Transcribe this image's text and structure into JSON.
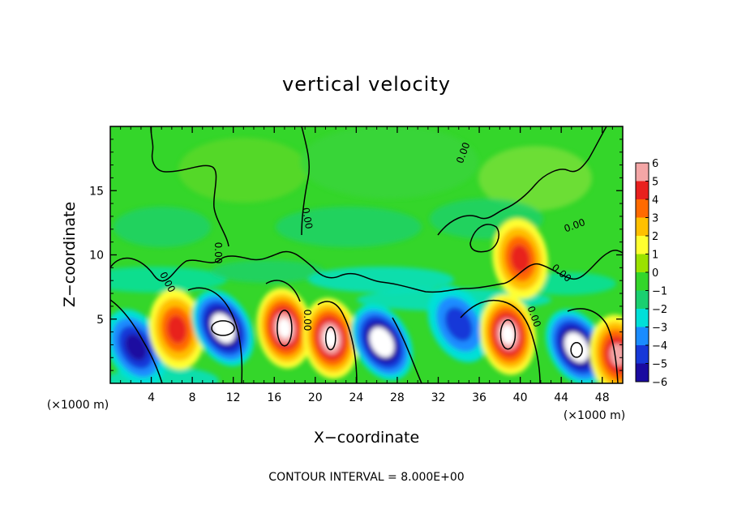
{
  "chart_data": {
    "type": "heatmap",
    "title": "vertical velocity",
    "xlabel": "X−coordinate",
    "ylabel": "Z−coordinate",
    "x_unit_left": "(×1000 m)",
    "x_unit_right": "(×1000 m)",
    "footer": "CONTOUR INTERVAL = 8.000E+00",
    "xlim": [
      0,
      50
    ],
    "ylim": [
      0,
      20
    ],
    "x_ticks": [
      4,
      8,
      12,
      16,
      20,
      24,
      28,
      32,
      36,
      40,
      44,
      48
    ],
    "y_ticks": [
      5,
      10,
      15
    ],
    "colorbar": {
      "ticks": [
        "6",
        "5",
        "4",
        "3",
        "2",
        "1",
        "0",
        "−1",
        "−2",
        "−3",
        "−4",
        "−5",
        "−6"
      ],
      "colors": [
        "#f4a6a6",
        "#e8201e",
        "#ff6a00",
        "#ffc000",
        "#ffff30",
        "#9be200",
        "#34d62a",
        "#1ad070",
        "#00e0d8",
        "#1a8cff",
        "#1638d8",
        "#1a0aa0"
      ]
    },
    "contour_labels": [
      "0.00",
      "0.00",
      "0.00",
      "0.00",
      "0.00",
      "0.00",
      "0.00",
      "0.00"
    ],
    "features": [
      {
        "x": 2.5,
        "z": 2.8,
        "sign": "negative",
        "strength": 4
      },
      {
        "x": 6.5,
        "z": 4.2,
        "sign": "positive",
        "strength": 4
      },
      {
        "x": 11.0,
        "z": 4.3,
        "sign": "negative",
        "strength": 6
      },
      {
        "x": 17.0,
        "z": 4.3,
        "sign": "positive",
        "strength": 6
      },
      {
        "x": 21.5,
        "z": 3.5,
        "sign": "positive",
        "strength": 6
      },
      {
        "x": 26.5,
        "z": 3.2,
        "sign": "negative",
        "strength": 6
      },
      {
        "x": 34.0,
        "z": 4.6,
        "sign": "negative",
        "strength": 3
      },
      {
        "x": 38.8,
        "z": 3.8,
        "sign": "positive",
        "strength": 6
      },
      {
        "x": 45.5,
        "z": 2.8,
        "sign": "negative",
        "strength": 6
      },
      {
        "x": 49.5,
        "z": 2.2,
        "sign": "positive",
        "strength": 5
      },
      {
        "x": 40.0,
        "z": 9.7,
        "sign": "positive",
        "strength": 4
      }
    ]
  }
}
